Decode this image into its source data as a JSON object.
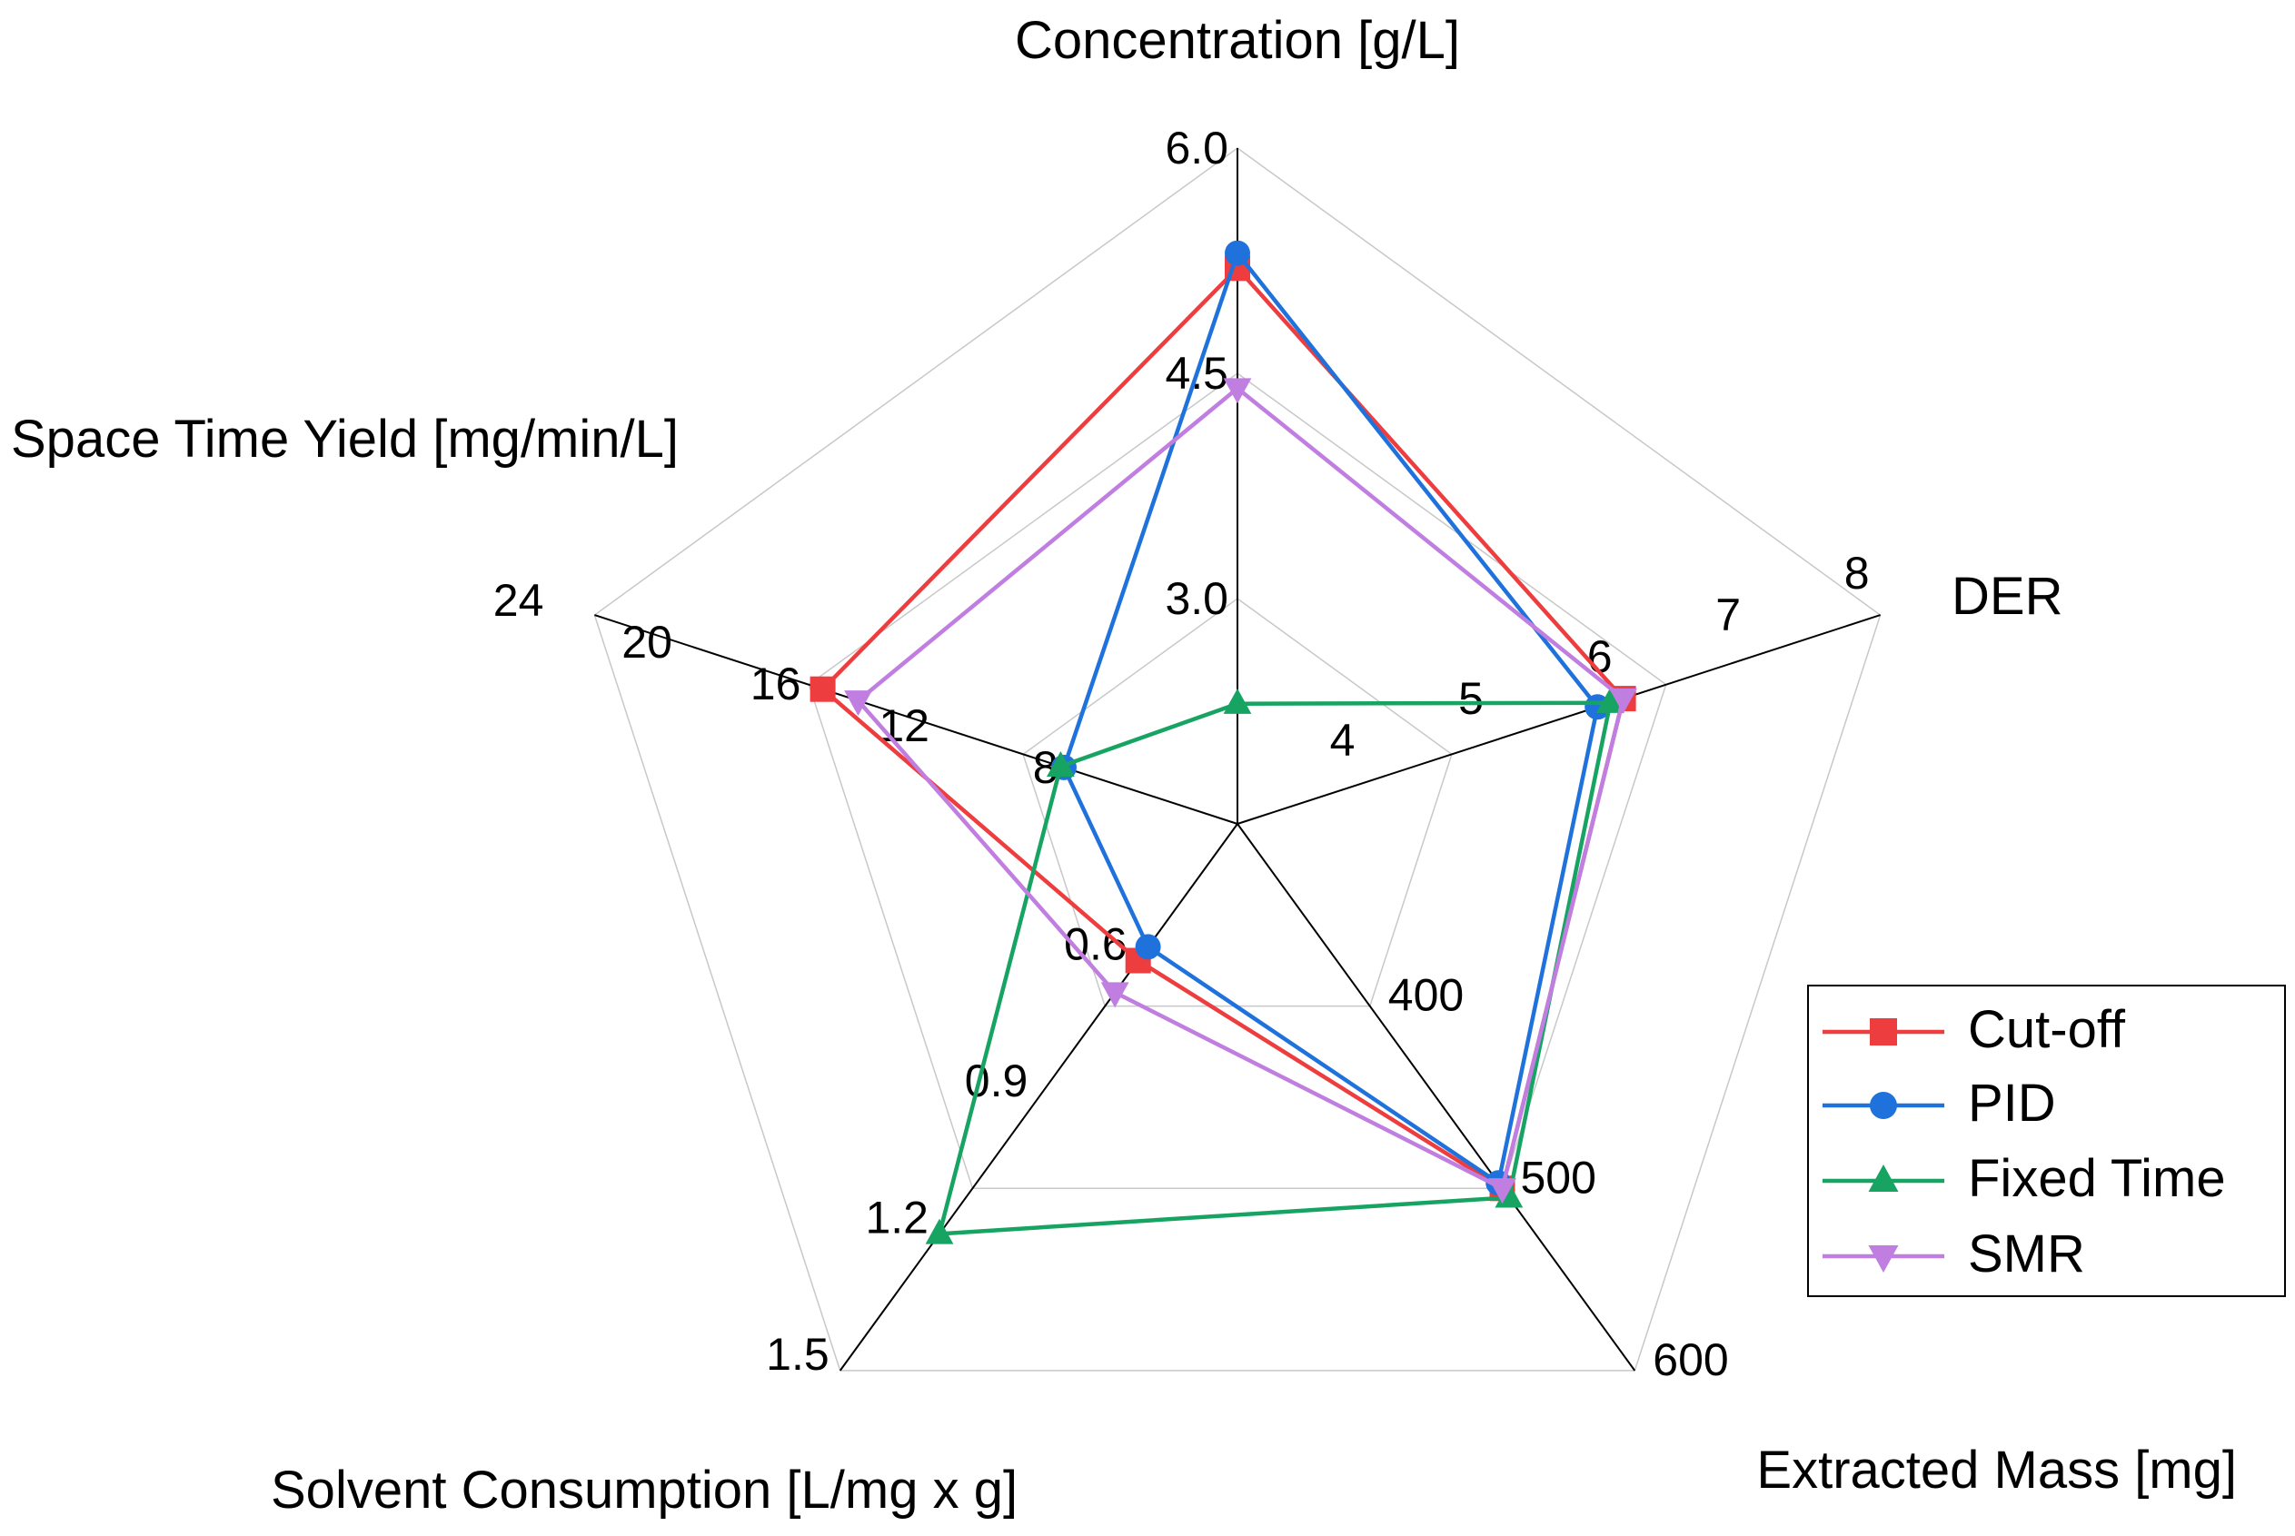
{
  "chart_data": {
    "type": "radar",
    "axes": [
      {
        "key": "conc",
        "title": "Concentration [g/L]",
        "min": 1.5,
        "max": 6.0,
        "ticks": [
          {
            "v": 3.0,
            "label": "3.0"
          },
          {
            "v": 4.5,
            "label": "4.5"
          },
          {
            "v": 6.0,
            "label": "6.0"
          }
        ]
      },
      {
        "key": "der",
        "title": "DER",
        "min": 3,
        "max": 8,
        "ticks": [
          {
            "v": 4,
            "label": "4"
          },
          {
            "v": 5,
            "label": "5"
          },
          {
            "v": 6,
            "label": "6"
          },
          {
            "v": 7,
            "label": "7"
          },
          {
            "v": 8,
            "label": "8"
          }
        ]
      },
      {
        "key": "mass",
        "title": "Extracted Mass [mg]",
        "min": 300,
        "max": 600,
        "ticks": [
          {
            "v": 400,
            "label": "400"
          },
          {
            "v": 500,
            "label": "500"
          },
          {
            "v": 600,
            "label": "600"
          }
        ]
      },
      {
        "key": "solv",
        "title": "Solvent Consumption [L/mg x g]",
        "min": 0.3,
        "max": 1.5,
        "ticks": [
          {
            "v": 0.6,
            "label": "0.6"
          },
          {
            "v": 0.9,
            "label": "0.9"
          },
          {
            "v": 1.2,
            "label": "1.2"
          },
          {
            "v": 1.5,
            "label": "1.5"
          }
        ]
      },
      {
        "key": "sty",
        "title": "Space Time Yield [mg/min/L]",
        "min": 4,
        "max": 24,
        "ticks": [
          {
            "v": 8,
            "label": "8"
          },
          {
            "v": 12,
            "label": "12"
          },
          {
            "v": 16,
            "label": "16"
          },
          {
            "v": 20,
            "label": "20"
          },
          {
            "v": 24,
            "label": "24"
          }
        ]
      }
    ],
    "series": [
      {
        "name": "Cut-off",
        "color": "#ee3d3f",
        "marker": "square",
        "values": [
          5.2,
          6.0,
          500,
          0.6,
          16.9
        ]
      },
      {
        "name": "PID",
        "color": "#1f72dc",
        "marker": "circle",
        "values": [
          5.3,
          5.8,
          497,
          0.57,
          9.4
        ]
      },
      {
        "name": "Fixed Time",
        "color": "#17a463",
        "marker": "triangle-up",
        "values": [
          2.3,
          5.9,
          505,
          1.2,
          9.5
        ]
      },
      {
        "name": "SMR",
        "color": "#c07ee1",
        "marker": "triangle-down",
        "values": [
          4.4,
          6.0,
          500,
          0.67,
          15.8
        ]
      }
    ],
    "legend": {
      "position": "right"
    }
  }
}
